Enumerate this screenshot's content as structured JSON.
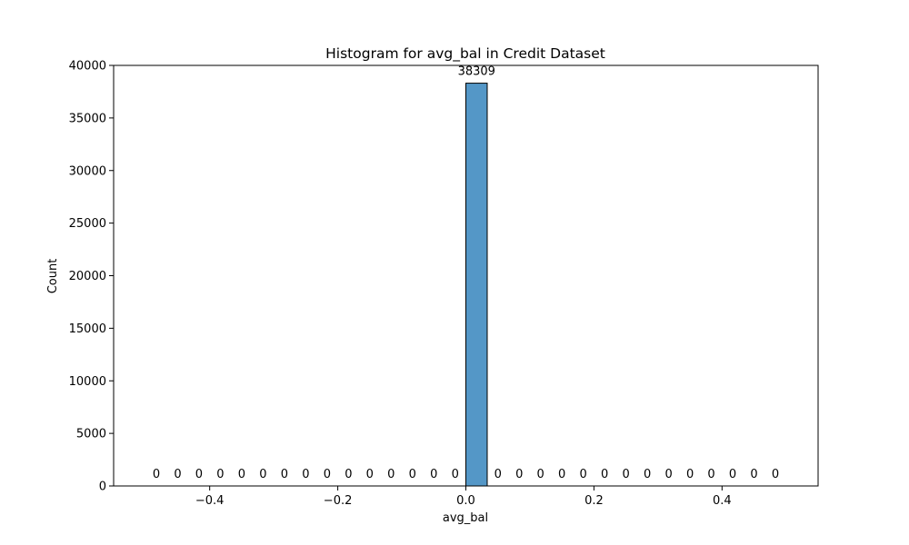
{
  "chart_data": {
    "type": "bar",
    "title": "Histogram for avg_bal in Credit Dataset",
    "xlabel": "avg_bal",
    "ylabel": "Count",
    "xlim": [
      -0.55,
      0.55
    ],
    "ylim": [
      0,
      40000
    ],
    "x_ticks": [
      -0.4,
      -0.2,
      0.0,
      0.2,
      0.4
    ],
    "x_tick_labels": [
      "−0.4",
      "−0.2",
      "0.0",
      "0.2",
      "0.4"
    ],
    "y_ticks": [
      0,
      5000,
      10000,
      15000,
      20000,
      25000,
      30000,
      35000,
      40000
    ],
    "y_tick_labels": [
      "0",
      "5000",
      "10000",
      "15000",
      "20000",
      "25000",
      "30000",
      "35000",
      "40000"
    ],
    "bin_range": [
      -0.5,
      0.5
    ],
    "bin_count": 30,
    "values": [
      0,
      0,
      0,
      0,
      0,
      0,
      0,
      0,
      0,
      0,
      0,
      0,
      0,
      0,
      0,
      38309,
      0,
      0,
      0,
      0,
      0,
      0,
      0,
      0,
      0,
      0,
      0,
      0,
      0,
      0
    ],
    "data_labels": [
      "0",
      "0",
      "0",
      "0",
      "0",
      "0",
      "0",
      "0",
      "0",
      "0",
      "0",
      "0",
      "0",
      "0",
      "0",
      "38309",
      "0",
      "0",
      "0",
      "0",
      "0",
      "0",
      "0",
      "0",
      "0",
      "0",
      "0",
      "0",
      "0",
      "0"
    ],
    "grid": false,
    "colors": {
      "bar_fill": "#5497c7",
      "bar_edge": "#000000",
      "axis": "#000000"
    }
  }
}
